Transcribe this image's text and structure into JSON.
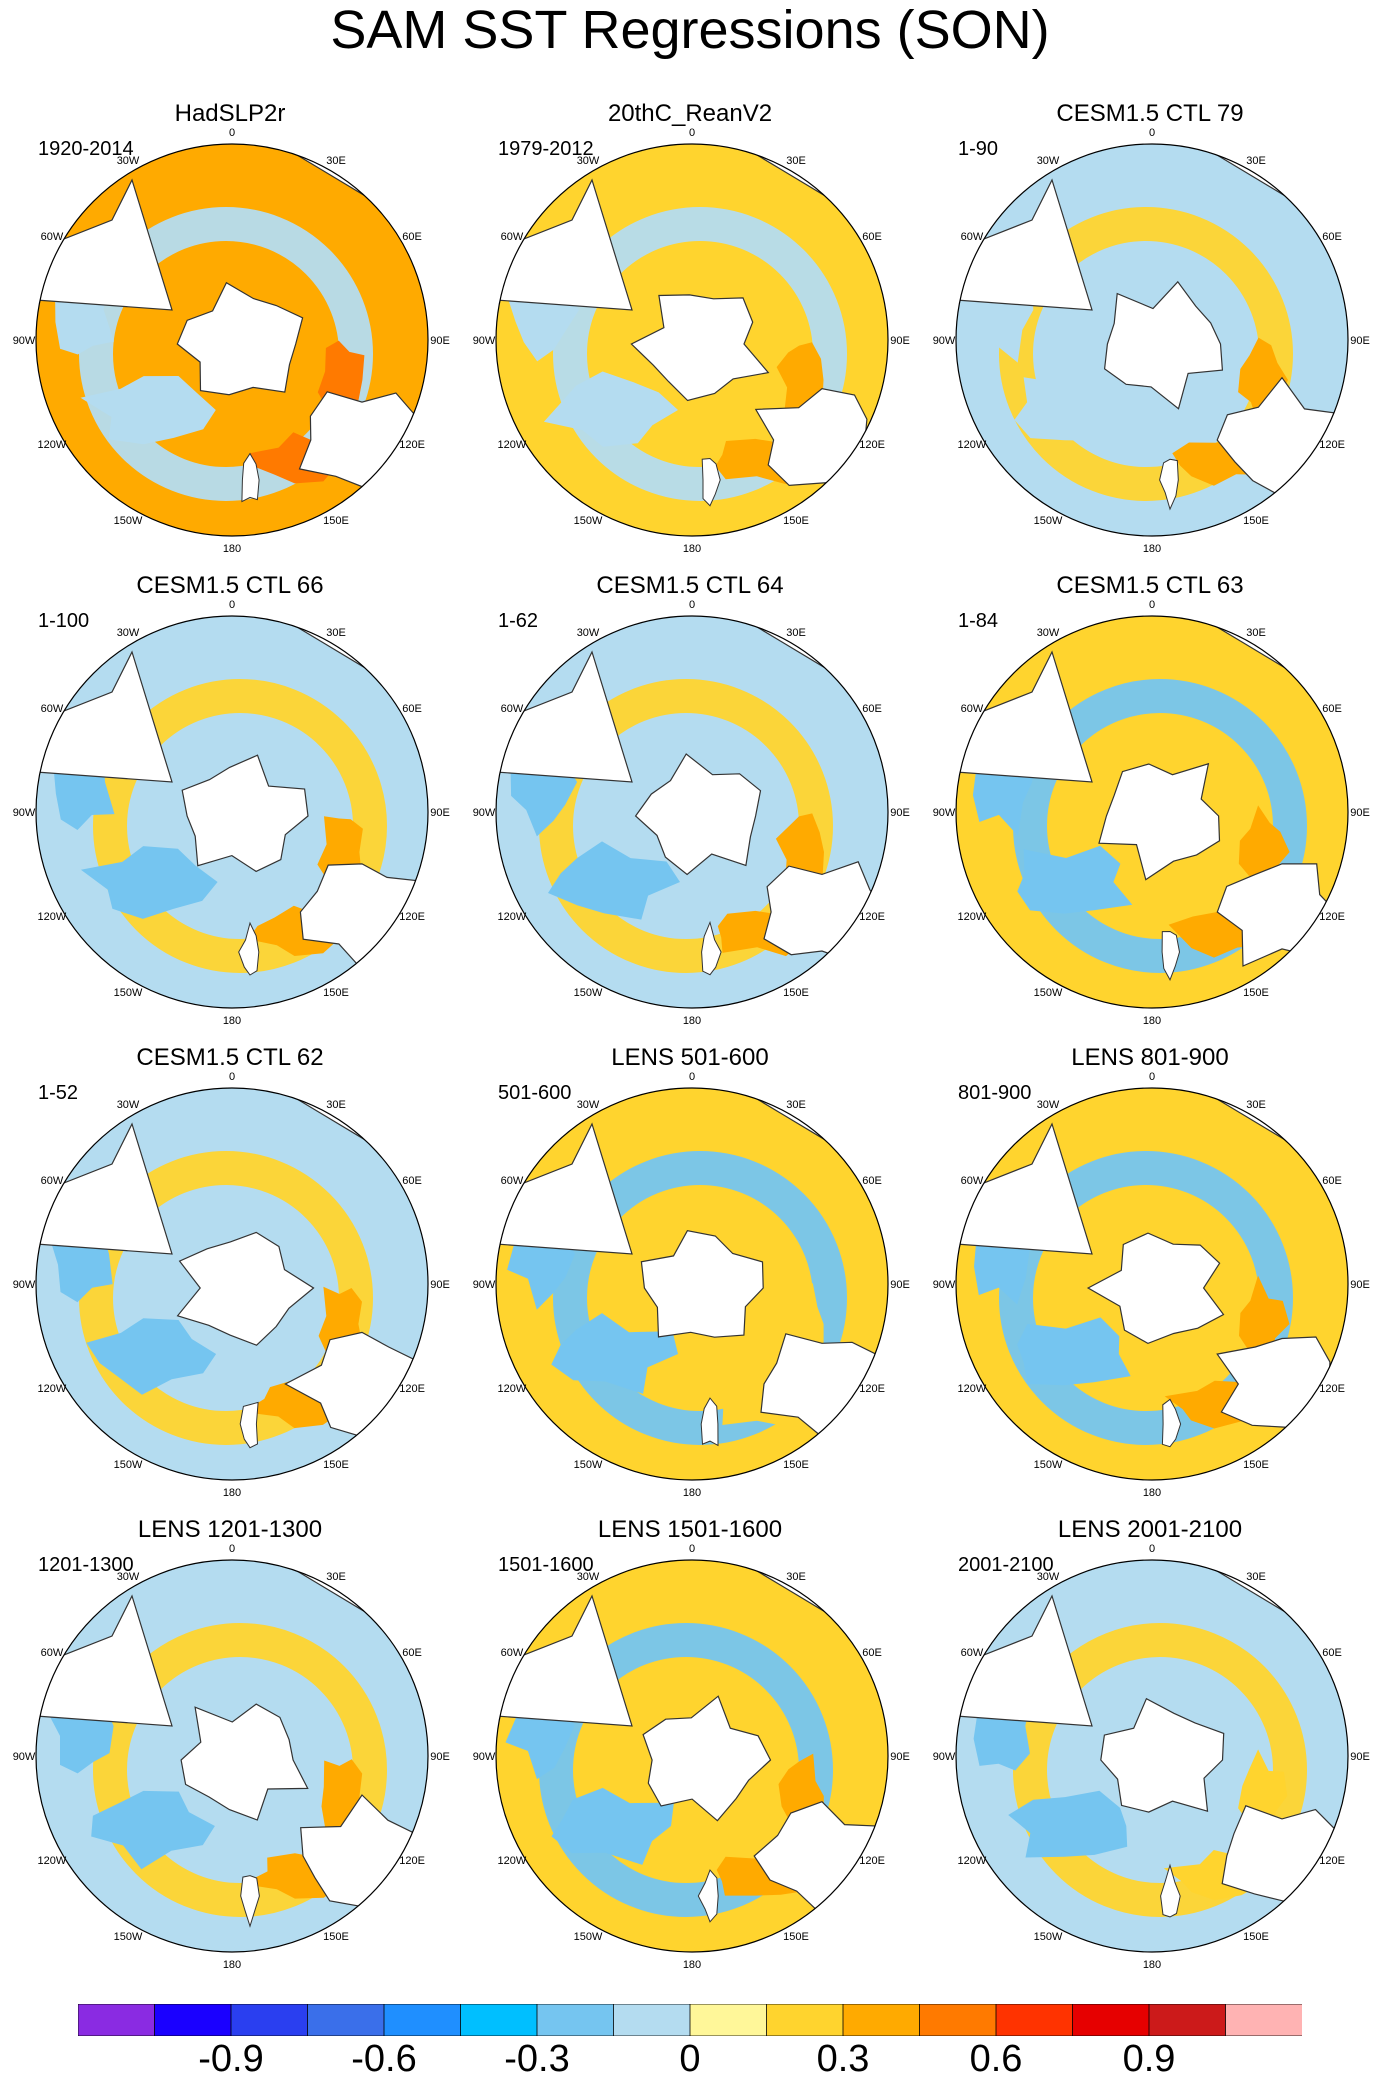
{
  "title": "SAM SST Regressions (SON)",
  "colors": {
    "land": "#ffffff",
    "coast": "#333333",
    "levels": [
      "#8a2be2",
      "#1a00ff",
      "#2a3ff0",
      "#3a6fea",
      "#1f8fff",
      "#00bfff",
      "#75c5f0",
      "#b4dcf0",
      "#fff799",
      "#ffd42e",
      "#ffaa00",
      "#ff7a00",
      "#ff3300",
      "#e60000",
      "#cc1a1a",
      "#ffb3b3"
    ]
  },
  "colorbar": {
    "tick_labels": [
      "-0.9",
      "-0.6",
      "-0.3",
      "0",
      "0.3",
      "0.6",
      "0.9"
    ]
  },
  "chart_data": {
    "type": "heatmap",
    "projection": "south polar stereographic",
    "variable": "SST regression on SAM index (SON)",
    "longitude_labels": [
      "0",
      "30E",
      "60E",
      "90E",
      "120E",
      "150E",
      "180",
      "150W",
      "120W",
      "90W",
      "60W",
      "30W"
    ],
    "colorbar_levels": [
      -1.05,
      -0.9,
      -0.75,
      -0.6,
      -0.45,
      -0.3,
      -0.15,
      0,
      0.15,
      0.3,
      0.45,
      0.6,
      0.75,
      0.9,
      1.05
    ],
    "panels": [
      {
        "title": "HadSLP2r",
        "period": "1920-2014",
        "dominant_level": 0.3,
        "weak_negative_level": -0.15,
        "strong_level": 0.45
      },
      {
        "title": "20thC_ReanV2",
        "period": "1979-2012",
        "dominant_level": 0.15,
        "weak_negative_level": -0.15,
        "strong_level": 0.3
      },
      {
        "title": "CESM1.5 CTL 79",
        "period": "1-90",
        "dominant_level": -0.15,
        "weak_negative_level": -0.15,
        "strong_level": 0.3
      },
      {
        "title": "CESM1.5 CTL 66",
        "period": "1-100",
        "dominant_level": -0.15,
        "weak_negative_level": -0.3,
        "strong_level": 0.3
      },
      {
        "title": "CESM1.5 CTL 64",
        "period": "1-62",
        "dominant_level": -0.15,
        "weak_negative_level": -0.3,
        "strong_level": 0.3
      },
      {
        "title": "CESM1.5 CTL 63",
        "period": "1-84",
        "dominant_level": 0.15,
        "weak_negative_level": -0.3,
        "strong_level": 0.3
      },
      {
        "title": "CESM1.5 CTL 62",
        "period": "1-52",
        "dominant_level": -0.15,
        "weak_negative_level": -0.3,
        "strong_level": 0.3
      },
      {
        "title": "LENS 501-600",
        "period": "501-600",
        "dominant_level": 0.15,
        "weak_negative_level": -0.3,
        "strong_level": 0.15
      },
      {
        "title": "LENS 801-900",
        "period": "801-900",
        "dominant_level": 0.15,
        "weak_negative_level": -0.3,
        "strong_level": 0.3
      },
      {
        "title": "LENS 1201-1300",
        "period": "1201-1300",
        "dominant_level": -0.15,
        "weak_negative_level": -0.3,
        "strong_level": 0.3
      },
      {
        "title": "LENS 1501-1600",
        "period": "1501-1600",
        "dominant_level": 0.15,
        "weak_negative_level": -0.3,
        "strong_level": 0.3
      },
      {
        "title": "LENS 2001-2100",
        "period": "2001-2100",
        "dominant_level": -0.15,
        "weak_negative_level": -0.3,
        "strong_level": 0.15
      }
    ]
  }
}
